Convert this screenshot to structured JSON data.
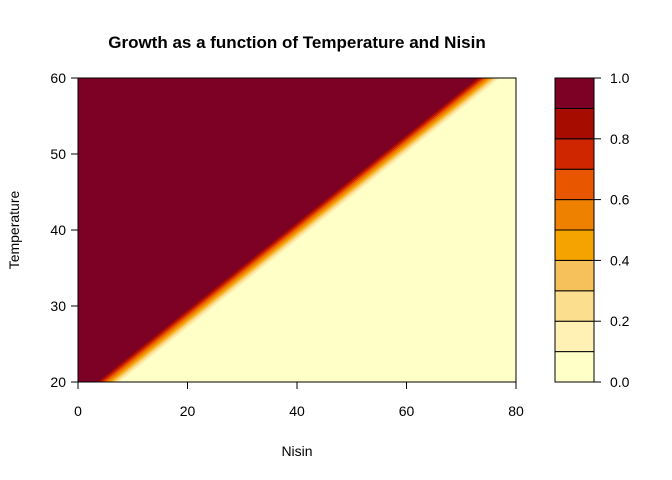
{
  "chart_data": {
    "type": "heatmap",
    "title": "Growth as a function of Temperature and Nisin",
    "xlabel": "Nisin",
    "ylabel": "Temperature",
    "xlim": [
      0,
      80
    ],
    "ylim": [
      20,
      60
    ],
    "x_ticks": [
      0,
      20,
      40,
      60,
      80
    ],
    "y_ticks": [
      20,
      30,
      40,
      50,
      60
    ],
    "legend": {
      "position": "right",
      "levels": [
        0.0,
        0.1,
        0.2,
        0.3,
        0.4,
        0.5,
        0.6,
        0.7,
        0.8,
        0.9,
        1.0
      ],
      "tick_labels": [
        "0.0",
        "0.2",
        "0.4",
        "0.6",
        "0.8",
        "1.0"
      ],
      "colors": [
        "#FFFFC8",
        "#FFF0B3",
        "#FCDE8F",
        "#F6C15A",
        "#F5A300",
        "#EE8100",
        "#E85600",
        "#D02600",
        "#A60D00",
        "#7D0025"
      ]
    },
    "contour_lines": [
      {
        "level": 0.1,
        "points": [
          [
            7.5,
            20
          ],
          [
            77,
            60
          ]
        ]
      },
      {
        "level": 0.2,
        "points": [
          [
            7.0,
            20
          ],
          [
            76.5,
            60
          ]
        ]
      },
      {
        "level": 0.3,
        "points": [
          [
            6.5,
            20
          ],
          [
            76,
            60
          ]
        ]
      },
      {
        "level": 0.4,
        "points": [
          [
            6.0,
            20
          ],
          [
            75.5,
            60
          ]
        ]
      },
      {
        "level": 0.5,
        "points": [
          [
            5.5,
            20
          ],
          [
            75,
            60
          ]
        ]
      },
      {
        "level": 0.6,
        "points": [
          [
            5.0,
            20
          ],
          [
            74.5,
            60
          ]
        ]
      },
      {
        "level": 0.7,
        "points": [
          [
            4.5,
            20
          ],
          [
            74,
            60
          ]
        ]
      },
      {
        "level": 0.8,
        "points": [
          [
            4.0,
            20
          ],
          [
            73.5,
            60
          ]
        ]
      },
      {
        "level": 0.9,
        "points": [
          [
            3.5,
            20
          ],
          [
            73,
            60
          ]
        ]
      }
    ]
  }
}
